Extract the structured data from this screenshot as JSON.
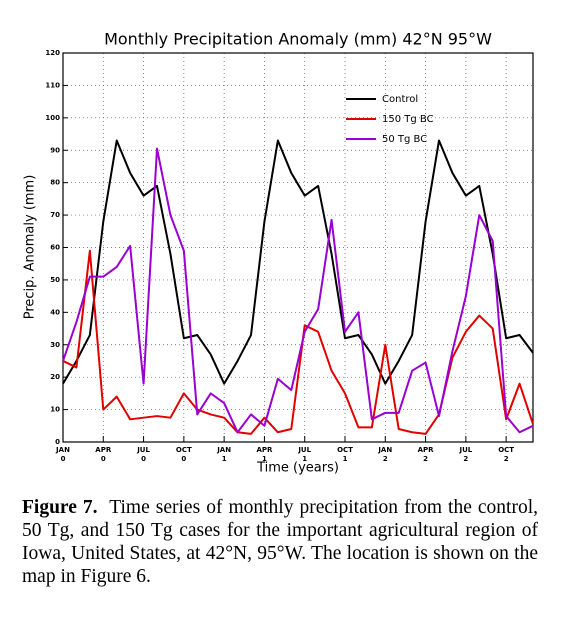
{
  "chart_data": {
    "type": "line",
    "title": "Monthly Precipitation Anomaly (mm) 42°N 95°W",
    "xlabel": "Time (years)",
    "ylabel": "Precip. Anomaly (mm)",
    "x": [
      0,
      1,
      2,
      3,
      4,
      5,
      6,
      7,
      8,
      9,
      10,
      11,
      12,
      13,
      14,
      15,
      16,
      17,
      18,
      19,
      20,
      21,
      22,
      23,
      24,
      25,
      26,
      27,
      28,
      29,
      30,
      31,
      32,
      33,
      34,
      35
    ],
    "xlim": [
      0,
      35
    ],
    "xticks": [
      {
        "value": 0,
        "label": "JAN",
        "sublabel": "0"
      },
      {
        "value": 3,
        "label": "APR",
        "sublabel": "0"
      },
      {
        "value": 6,
        "label": "JUL",
        "sublabel": "0"
      },
      {
        "value": 9,
        "label": "OCT",
        "sublabel": "0"
      },
      {
        "value": 12,
        "label": "JAN",
        "sublabel": "1"
      },
      {
        "value": 15,
        "label": "APR",
        "sublabel": "1"
      },
      {
        "value": 18,
        "label": "JUL",
        "sublabel": "1"
      },
      {
        "value": 21,
        "label": "OCT",
        "sublabel": "1"
      },
      {
        "value": 24,
        "label": "JAN",
        "sublabel": "2"
      },
      {
        "value": 27,
        "label": "APR",
        "sublabel": "2"
      },
      {
        "value": 30,
        "label": "JUL",
        "sublabel": "2"
      },
      {
        "value": 33,
        "label": "OCT",
        "sublabel": "2"
      }
    ],
    "ylim": [
      0,
      120
    ],
    "yticks": [
      0,
      10,
      20,
      30,
      40,
      50,
      60,
      70,
      80,
      90,
      100,
      110,
      120
    ],
    "grid": true,
    "legend": "upper right",
    "series": [
      {
        "name": "Control",
        "color": "#000000",
        "values": [
          18,
          25,
          33,
          68,
          93,
          83,
          76,
          79,
          58,
          32,
          33,
          27,
          18,
          25,
          33,
          68,
          93,
          83,
          76,
          79,
          58,
          32,
          33,
          27,
          18,
          25,
          33,
          68,
          93,
          83,
          76,
          79,
          58,
          32,
          33,
          27.5
        ]
      },
      {
        "name": "150 Tg BC",
        "color": "#e00000",
        "values": [
          25,
          23,
          59,
          10,
          14,
          7,
          7.5,
          8,
          7.5,
          15,
          10,
          8.5,
          7.5,
          3,
          2.5,
          7.5,
          3,
          4,
          36,
          34,
          22,
          15,
          4.5,
          4.5,
          30,
          4,
          3,
          2.5,
          8.5,
          26,
          34,
          39,
          35,
          7,
          18,
          5.5
        ]
      },
      {
        "name": "50 Tg BC",
        "color": "#9a00d0",
        "values": [
          25,
          37,
          51,
          51,
          54,
          60.5,
          18,
          90.5,
          70,
          59,
          8.5,
          15,
          12,
          3,
          8.5,
          5,
          19.5,
          16,
          34,
          41,
          68.5,
          34,
          40,
          7,
          9,
          9,
          22,
          24.5,
          8,
          28,
          45,
          70,
          62,
          8,
          3,
          5
        ]
      }
    ]
  },
  "caption": {
    "label": "Figure 7.",
    "text": "Time series of monthly precipitation from the control, 50 Tg, and 150 Tg cases for the important agricultural region of Iowa, United States, at 42°N, 95°W. The location is shown on the map in Figure 6."
  }
}
